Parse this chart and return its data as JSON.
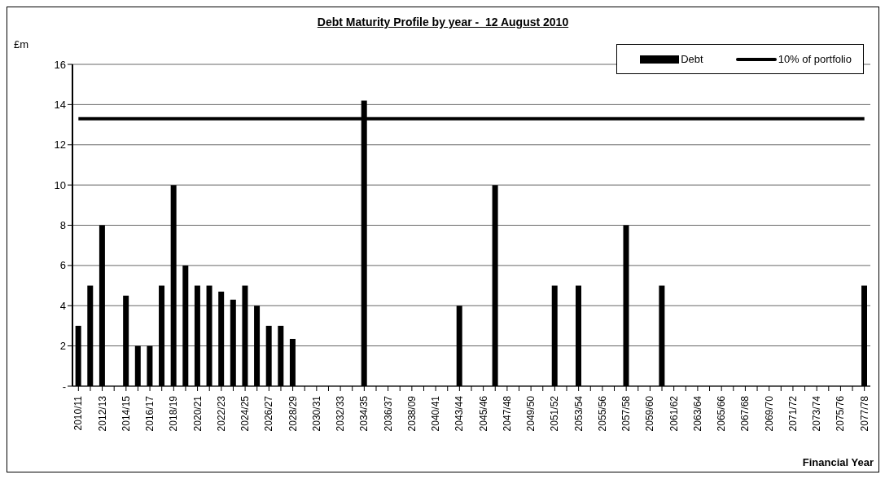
{
  "chart_data": {
    "type": "bar",
    "title": "Debt Maturity Profile by year -  12 August 2010",
    "xlabel": "Financial Year",
    "ylabel": "£m",
    "categories": [
      "2010/11",
      null,
      "2012/13",
      null,
      "2014/15",
      null,
      "2016/17",
      null,
      "2018/19",
      null,
      "2020/21",
      null,
      "2022/23",
      null,
      "2024/25",
      null,
      "2026/27",
      null,
      "2028/29",
      null,
      "2030/31",
      null,
      "2032/33",
      null,
      "2034/35",
      null,
      "2036/37",
      null,
      "2038/09",
      null,
      "2040/41",
      null,
      "2043/44",
      null,
      "2045/46",
      null,
      "2047/48",
      null,
      "2049/50",
      null,
      "2051/52",
      null,
      "2053/54",
      null,
      "2055/56",
      null,
      "2057/58",
      null,
      "2059/60",
      null,
      "2061/62",
      null,
      "2063/64",
      null,
      "2065/66",
      null,
      "2067/68",
      null,
      "2069/70",
      null,
      "2071/72",
      null,
      "2073/74",
      null,
      "2075/76",
      null,
      "2077/78"
    ],
    "series": [
      {
        "name": "Debt",
        "color": "#000000",
        "values": [
          3,
          5,
          8,
          null,
          4.5,
          2,
          2,
          5,
          10,
          6,
          5,
          5,
          4.7,
          4.3,
          5,
          4,
          3,
          3,
          2.35,
          null,
          null,
          null,
          null,
          null,
          14.2,
          null,
          null,
          null,
          null,
          null,
          null,
          null,
          4,
          null,
          null,
          10,
          null,
          null,
          null,
          null,
          5,
          null,
          5,
          null,
          null,
          null,
          8,
          null,
          null,
          5,
          null,
          null,
          null,
          null,
          null,
          null,
          null,
          null,
          null,
          null,
          null,
          null,
          null,
          null,
          null,
          null,
          5
        ]
      },
      {
        "name": "10% of portfolio",
        "type": "line",
        "color": "#000000",
        "values": [
          13.3,
          13.3,
          13.3,
          13.3,
          13.3,
          13.3,
          13.3,
          13.3,
          13.3,
          13.3,
          13.3,
          13.3,
          13.3,
          13.3,
          13.3,
          13.3,
          13.3,
          13.3,
          13.3,
          13.3,
          13.3,
          13.3,
          13.3,
          13.3,
          13.3,
          13.3,
          13.3,
          13.3,
          13.3,
          13.3,
          13.3,
          13.3,
          13.3,
          13.3,
          13.3,
          13.3,
          13.3,
          13.3,
          13.3,
          13.3,
          13.3,
          13.3,
          13.3,
          13.3,
          13.3,
          13.3,
          13.3,
          13.3,
          13.3,
          13.3,
          13.3,
          13.3,
          13.3,
          13.3,
          13.3,
          13.3,
          13.3,
          13.3,
          13.3,
          13.3,
          13.3,
          13.3,
          13.3,
          13.3,
          13.3,
          13.3,
          13.3
        ]
      }
    ],
    "ylim": [
      0,
      16
    ],
    "yticks": [
      {
        "value": 0,
        "label": "-"
      },
      2,
      4,
      6,
      8,
      10,
      12,
      14,
      16
    ],
    "grid": "y",
    "legend": "top right",
    "marker": "none",
    "line_style": "solid"
  }
}
